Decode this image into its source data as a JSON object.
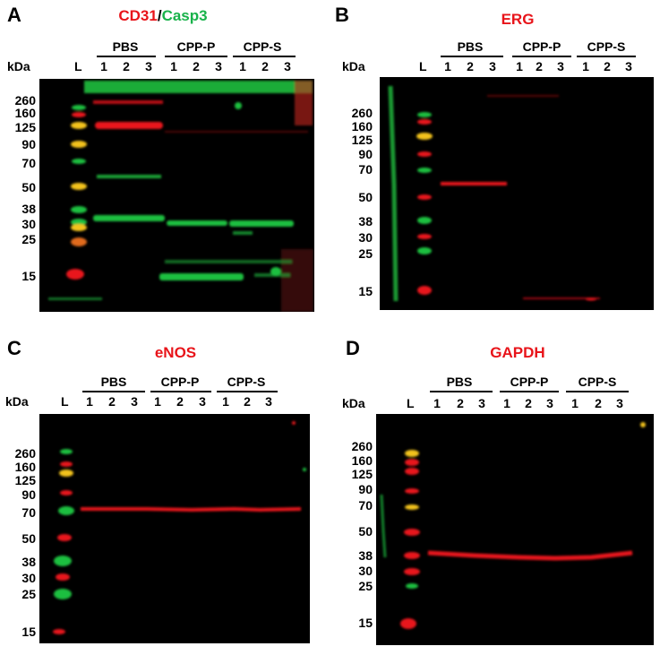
{
  "colors": {
    "red": "#e8141a",
    "green": "#1fbf3f",
    "yellow": "#f2c21a"
  },
  "panels": [
    {
      "letter": "A",
      "title_parts": [
        {
          "text": "CD31",
          "color": "#e8141a"
        },
        {
          "text": "/",
          "color": "#000000"
        },
        {
          "text": "Casp3",
          "color": "#18b24a"
        }
      ],
      "kda": "kDa",
      "ladder_label": "L",
      "groups": [
        "PBS",
        "CPP-P",
        "CPP-S"
      ],
      "lanes": [
        "1",
        "2",
        "3",
        "1",
        "2",
        "3",
        "1",
        "2",
        "3"
      ],
      "mw": [
        "260",
        "160",
        "125",
        "90",
        "70",
        "50",
        "38",
        "30",
        "25",
        "15"
      ]
    },
    {
      "letter": "B",
      "title_parts": [
        {
          "text": "ERG",
          "color": "#e8141a"
        }
      ],
      "kda": "kDa",
      "ladder_label": "L",
      "groups": [
        "PBS",
        "CPP-P",
        "CPP-S"
      ],
      "lanes": [
        "1",
        "2",
        "3",
        "1",
        "2",
        "3",
        "1",
        "2",
        "3"
      ],
      "mw": [
        "260",
        "160",
        "125",
        "90",
        "70",
        "50",
        "38",
        "30",
        "25",
        "15"
      ]
    },
    {
      "letter": "C",
      "title_parts": [
        {
          "text": "eNOS",
          "color": "#e8141a"
        }
      ],
      "kda": "kDa",
      "ladder_label": "L",
      "groups": [
        "PBS",
        "CPP-P",
        "CPP-S"
      ],
      "lanes": [
        "1",
        "2",
        "3",
        "1",
        "2",
        "3",
        "1",
        "2",
        "3"
      ],
      "mw": [
        "260",
        "160",
        "125",
        "90",
        "70",
        "50",
        "38",
        "30",
        "25",
        "15"
      ]
    },
    {
      "letter": "D",
      "title_parts": [
        {
          "text": "GAPDH",
          "color": "#e8141a"
        }
      ],
      "kda": "kDa",
      "ladder_label": "L",
      "groups": [
        "PBS",
        "CPP-P",
        "CPP-S"
      ],
      "lanes": [
        "1",
        "2",
        "3",
        "1",
        "2",
        "3",
        "1",
        "2",
        "3"
      ],
      "mw": [
        "260",
        "160",
        "125",
        "90",
        "70",
        "50",
        "38",
        "30",
        "25",
        "15"
      ]
    }
  ]
}
